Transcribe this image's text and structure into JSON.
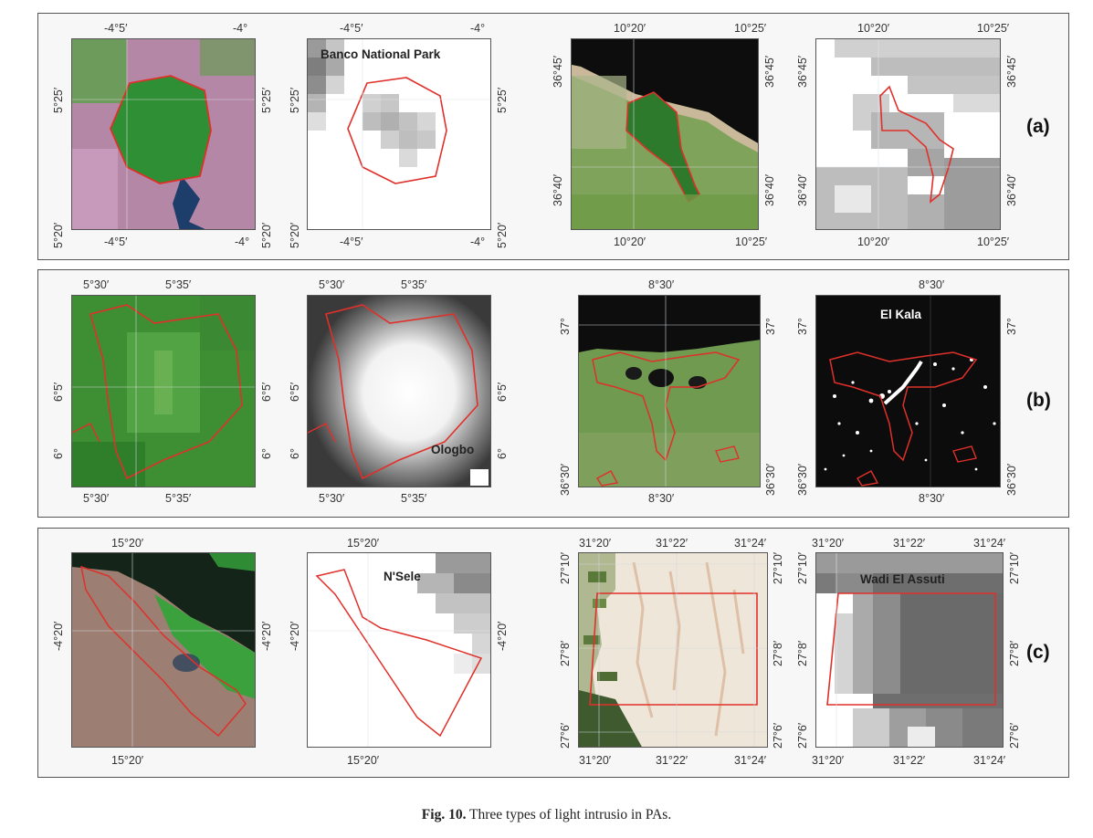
{
  "figure": {
    "caption_label": "Fig. 10.",
    "caption_text": " Three types of light intrusio in PAs."
  },
  "rows": [
    {
      "tag": "(a)",
      "panels": [
        {
          "kind": "satellite",
          "top_ticks": [
            "-4°5′",
            "-4°"
          ],
          "bottom_ticks": [
            "-4°5′",
            "-4°"
          ],
          "left_ticks": [
            "5°25′",
            "5°20′"
          ],
          "right_ticks": [
            "5°25′",
            "5°20′"
          ],
          "label": ""
        },
        {
          "kind": "light",
          "top_ticks": [
            "-4°5′",
            "-4°"
          ],
          "bottom_ticks": [
            "-4°5′",
            "-4°"
          ],
          "left_ticks": [
            "5°25′",
            "5°20′"
          ],
          "right_ticks": [
            "5°25′",
            "5°20′"
          ],
          "label": "Banco National Park"
        },
        {
          "kind": "satellite",
          "top_ticks": [
            "10°20′",
            "10°25′"
          ],
          "bottom_ticks": [
            "10°20′",
            "10°25′"
          ],
          "left_ticks": [
            "36°45′",
            "36°40′"
          ],
          "right_ticks": [
            "36°45′",
            "36°40′"
          ],
          "label": ""
        },
        {
          "kind": "light",
          "top_ticks": [
            "10°20′",
            "10°25′"
          ],
          "bottom_ticks": [
            "10°20′",
            "10°25′"
          ],
          "left_ticks": [
            "36°45′",
            "36°40′"
          ],
          "right_ticks": [
            "36°45′",
            "36°40′"
          ],
          "label": ""
        }
      ]
    },
    {
      "tag": "(b)",
      "panels": [
        {
          "kind": "satellite",
          "top_ticks": [
            "5°30′",
            "5°35′"
          ],
          "bottom_ticks": [
            "5°30′",
            "5°35′"
          ],
          "left_ticks": [
            "6°5′",
            "6°"
          ],
          "right_ticks": [
            "6°5′",
            "6°"
          ],
          "label": ""
        },
        {
          "kind": "light",
          "top_ticks": [
            "5°30′",
            "5°35′"
          ],
          "bottom_ticks": [
            "5°30′",
            "5°35′"
          ],
          "left_ticks": [
            "6°5′",
            "6°"
          ],
          "right_ticks": [
            "6°5′",
            "6°"
          ],
          "label": "Ologbo"
        },
        {
          "kind": "satellite",
          "top_ticks": [
            "8°30′"
          ],
          "bottom_ticks": [
            "8°30′"
          ],
          "left_ticks": [
            "37°",
            "36°30′"
          ],
          "right_ticks": [
            "37°",
            "36°30′"
          ],
          "label": ""
        },
        {
          "kind": "light",
          "top_ticks": [
            "8°30′"
          ],
          "bottom_ticks": [
            "8°30′"
          ],
          "left_ticks": [
            "37°",
            "36°30′"
          ],
          "right_ticks": [
            "37°",
            "36°30′"
          ],
          "label": "El Kala"
        }
      ]
    },
    {
      "tag": "(c)",
      "panels": [
        {
          "kind": "satellite",
          "top_ticks": [
            "15°20′"
          ],
          "bottom_ticks": [
            "15°20′"
          ],
          "left_ticks": [
            "-4°20′"
          ],
          "right_ticks": [
            "-4°20′"
          ],
          "label": ""
        },
        {
          "kind": "light",
          "top_ticks": [
            "15°20′"
          ],
          "bottom_ticks": [
            "15°20′"
          ],
          "left_ticks": [
            "-4°20′"
          ],
          "right_ticks": [
            "-4°20′"
          ],
          "label": "N'Sele"
        },
        {
          "kind": "satellite",
          "top_ticks": [
            "31°20′",
            "31°22′",
            "31°24′"
          ],
          "bottom_ticks": [
            "31°20′",
            "31°22′",
            "31°24′"
          ],
          "left_ticks": [
            "27°10′",
            "27°8′",
            "27°6′"
          ],
          "right_ticks": [
            "27°10′",
            "27°8′",
            "27°6′"
          ],
          "label": ""
        },
        {
          "kind": "light",
          "top_ticks": [
            "31°20′",
            "31°22′",
            "31°24′"
          ],
          "bottom_ticks": [
            "31°20′",
            "31°22′",
            "31°24′"
          ],
          "left_ticks": [
            "27°10′",
            "27°8′",
            "27°6′"
          ],
          "right_ticks": [
            "27°10′",
            "27°8′",
            "27°6′"
          ],
          "label": "Wadi El Assuti"
        }
      ]
    }
  ],
  "colors": {
    "boundary": "#e0302a",
    "vegetation": "#3f9a3a",
    "urban": "#b87fa5",
    "water": "#111111",
    "desert": "#efe6da"
  }
}
